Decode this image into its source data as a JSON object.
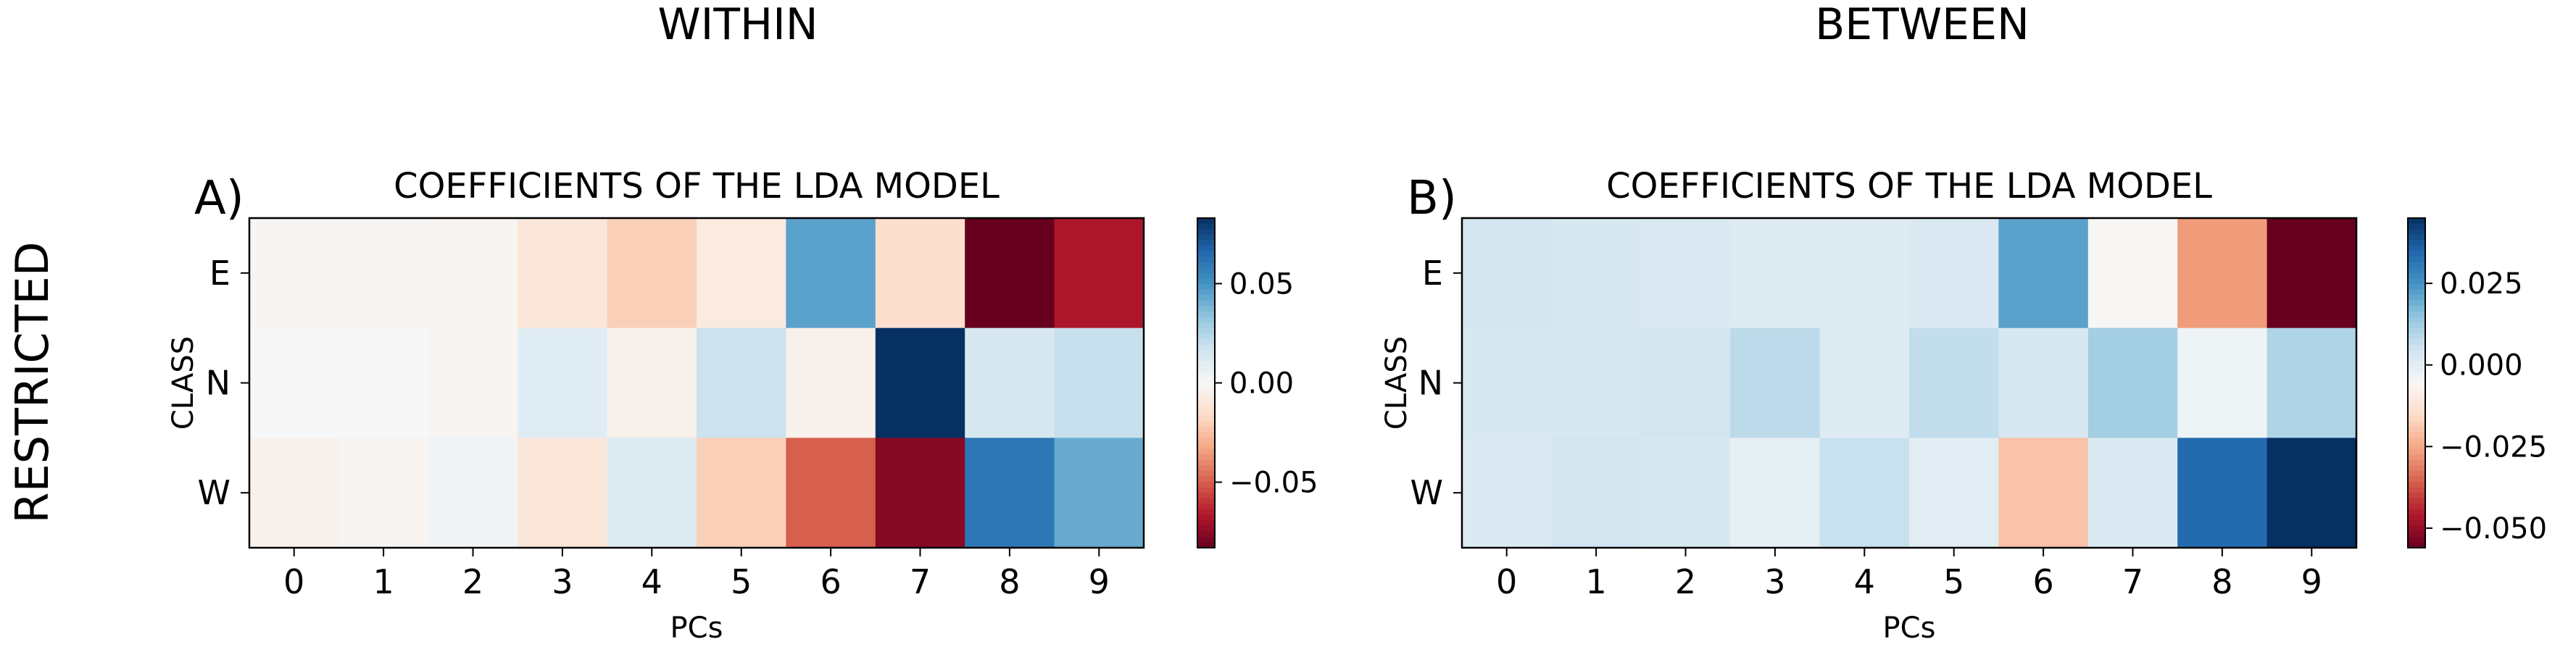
{
  "figure": {
    "column_titles": [
      "WITHIN",
      "BETWEEN"
    ],
    "row_title": "RESTRICTED"
  },
  "chart_data": [
    {
      "type": "heatmap",
      "panel_label": "A)",
      "title": "COEFFICIENTS OF THE LDA MODEL",
      "xlabel": "PCs",
      "ylabel": "CLASS",
      "x_categories": [
        "0",
        "1",
        "2",
        "3",
        "4",
        "5",
        "6",
        "7",
        "8",
        "9"
      ],
      "y_categories": [
        "E",
        "N",
        "W"
      ],
      "colormap": "RdBu",
      "vrange": [
        -0.083,
        0.083
      ],
      "colorbar_ticks": [
        0.05,
        0.0,
        -0.05
      ],
      "colorbar_tick_labels": [
        "0.05",
        "0.00",
        "−0.05"
      ],
      "values": [
        [
          -0.001,
          -0.001,
          -0.002,
          -0.01,
          -0.02,
          -0.008,
          0.045,
          -0.014,
          -0.083,
          -0.068
        ],
        [
          0.0,
          0.0,
          -0.002,
          0.01,
          -0.004,
          0.018,
          -0.004,
          0.083,
          0.014,
          0.019
        ],
        [
          -0.003,
          -0.002,
          0.003,
          -0.01,
          0.012,
          -0.02,
          -0.05,
          -0.076,
          0.06,
          0.042
        ]
      ]
    },
    {
      "type": "heatmap",
      "panel_label": "B)",
      "title": "COEFFICIENTS OF THE LDA MODEL",
      "xlabel": "PCs",
      "ylabel": "CLASS",
      "x_categories": [
        "0",
        "1",
        "2",
        "3",
        "4",
        "5",
        "6",
        "7",
        "8",
        "9"
      ],
      "y_categories": [
        "E",
        "N",
        "W"
      ],
      "colormap": "RdBu",
      "vrange": [
        -0.056,
        0.045
      ],
      "colorbar_ticks": [
        0.025,
        0.0,
        -0.025,
        -0.05
      ],
      "colorbar_tick_labels": [
        "0.025",
        "0.000",
        "−0.025",
        "−0.050"
      ],
      "values": [
        [
          0.004,
          0.003,
          0.002,
          0.001,
          0.001,
          0.002,
          0.022,
          -0.006,
          -0.027,
          -0.056
        ],
        [
          0.003,
          0.003,
          0.004,
          0.008,
          0.001,
          0.007,
          0.003,
          0.012,
          -0.003,
          0.01
        ],
        [
          0.002,
          0.004,
          0.003,
          -0.001,
          0.006,
          0.0,
          -0.02,
          0.002,
          0.034,
          0.045
        ]
      ]
    }
  ]
}
